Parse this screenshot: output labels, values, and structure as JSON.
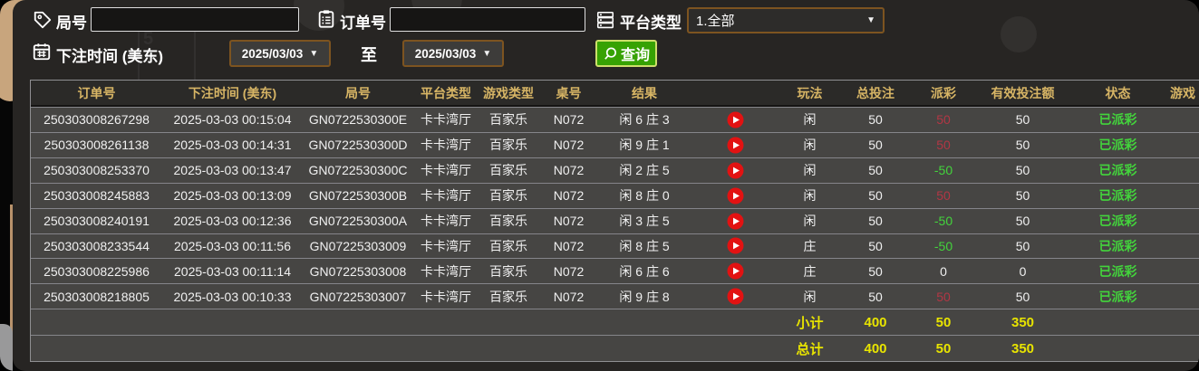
{
  "filters": {
    "round_label": "局号",
    "round_value": "",
    "order_label": "订单号",
    "order_value": "",
    "platform_label": "平台类型",
    "platform_selected": "1.全部",
    "bet_time_label": "下注时间 (美东)",
    "date_from": "2025/03/03",
    "range_to_label": "至",
    "date_to": "2025/03/03",
    "search_label": "查询"
  },
  "table": {
    "headers": [
      "订单号",
      "下注时间 (美东)",
      "局号",
      "平台类型",
      "游戏类型",
      "桌号",
      "结果",
      "",
      "玩法",
      "总投注",
      "派彩",
      "有效投注额",
      "状态",
      "游戏"
    ],
    "rows": [
      {
        "order_no": "250303008267298",
        "bet_time": "2025-03-03 00:15:04",
        "round_no": "GN0722530300E",
        "platform": "卡卡湾厅",
        "game_type": "百家乐",
        "table_no": "N072",
        "result": "闲 6 庄 3",
        "bet_side": "闲",
        "total_bet": "50",
        "payout": "50",
        "payout_sign": "pos",
        "valid_bet": "50",
        "status": "已派彩"
      },
      {
        "order_no": "250303008261138",
        "bet_time": "2025-03-03 00:14:31",
        "round_no": "GN0722530300D",
        "platform": "卡卡湾厅",
        "game_type": "百家乐",
        "table_no": "N072",
        "result": "闲 9 庄 1",
        "bet_side": "闲",
        "total_bet": "50",
        "payout": "50",
        "payout_sign": "pos",
        "valid_bet": "50",
        "status": "已派彩"
      },
      {
        "order_no": "250303008253370",
        "bet_time": "2025-03-03 00:13:47",
        "round_no": "GN0722530300C",
        "platform": "卡卡湾厅",
        "game_type": "百家乐",
        "table_no": "N072",
        "result": "闲 2 庄 5",
        "bet_side": "闲",
        "total_bet": "50",
        "payout": "-50",
        "payout_sign": "neg",
        "valid_bet": "50",
        "status": "已派彩"
      },
      {
        "order_no": "250303008245883",
        "bet_time": "2025-03-03 00:13:09",
        "round_no": "GN0722530300B",
        "platform": "卡卡湾厅",
        "game_type": "百家乐",
        "table_no": "N072",
        "result": "闲 8 庄 0",
        "bet_side": "闲",
        "total_bet": "50",
        "payout": "50",
        "payout_sign": "pos",
        "valid_bet": "50",
        "status": "已派彩"
      },
      {
        "order_no": "250303008240191",
        "bet_time": "2025-03-03 00:12:36",
        "round_no": "GN0722530300A",
        "platform": "卡卡湾厅",
        "game_type": "百家乐",
        "table_no": "N072",
        "result": "闲 3 庄 5",
        "bet_side": "闲",
        "total_bet": "50",
        "payout": "-50",
        "payout_sign": "neg",
        "valid_bet": "50",
        "status": "已派彩"
      },
      {
        "order_no": "250303008233544",
        "bet_time": "2025-03-03 00:11:56",
        "round_no": "GN07225303009",
        "platform": "卡卡湾厅",
        "game_type": "百家乐",
        "table_no": "N072",
        "result": "闲 8 庄 5",
        "bet_side": "庄",
        "total_bet": "50",
        "payout": "-50",
        "payout_sign": "neg",
        "valid_bet": "50",
        "status": "已派彩"
      },
      {
        "order_no": "250303008225986",
        "bet_time": "2025-03-03 00:11:14",
        "round_no": "GN07225303008",
        "platform": "卡卡湾厅",
        "game_type": "百家乐",
        "table_no": "N072",
        "result": "闲 6 庄 6",
        "bet_side": "庄",
        "total_bet": "50",
        "payout": "0",
        "payout_sign": "zero",
        "valid_bet": "0",
        "status": "已派彩"
      },
      {
        "order_no": "250303008218805",
        "bet_time": "2025-03-03 00:10:33",
        "round_no": "GN07225303007",
        "platform": "卡卡湾厅",
        "game_type": "百家乐",
        "table_no": "N072",
        "result": "闲 9 庄 8",
        "bet_side": "闲",
        "total_bet": "50",
        "payout": "50",
        "payout_sign": "pos",
        "valid_bet": "50",
        "status": "已派彩"
      }
    ],
    "subtotal": {
      "label": "小计",
      "total_bet": "400",
      "payout": "50",
      "valid_bet": "350"
    },
    "total": {
      "label": "总计",
      "total_bet": "400",
      "payout": "50",
      "valid_bet": "350"
    }
  },
  "colors": {
    "header_gold": "#d7b565",
    "win_red": "#b23644",
    "loss_green": "#43d43c",
    "status_green": "#43d43c",
    "totals_yellow": "#e8e400",
    "button_green": "#37a203",
    "select_border_orange": "#7d5420",
    "row_bg": "#464543",
    "panel_bg": "#272523"
  }
}
